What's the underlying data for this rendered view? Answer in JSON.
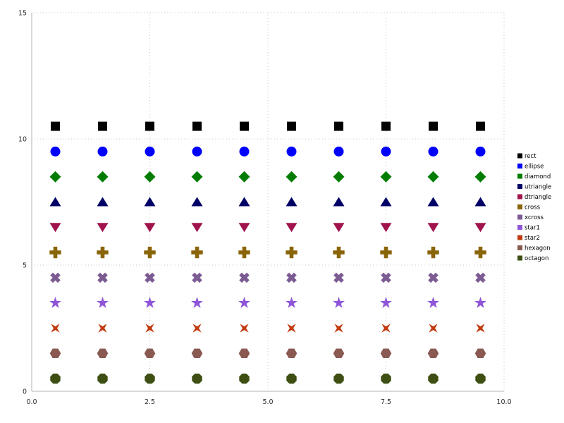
{
  "chart_data": {
    "type": "scatter",
    "title": "",
    "xlabel": "",
    "ylabel": "",
    "xlim": [
      0,
      10
    ],
    "ylim": [
      0,
      15
    ],
    "grid": "dotted",
    "legend_position": "right",
    "x": [
      0.5,
      1.5,
      2.5,
      3.5,
      4.5,
      5.5,
      6.5,
      7.5,
      8.5,
      9.5
    ],
    "xticks": {
      "values": [
        0,
        2.5,
        5,
        7.5,
        10
      ],
      "labels": [
        "0.0",
        "2.5",
        "5.0",
        "7.5",
        "10.0"
      ]
    },
    "yticks": {
      "values": [
        0,
        5,
        10,
        15
      ],
      "labels": [
        "0",
        "5",
        "10",
        "15"
      ]
    },
    "series": [
      {
        "name": "rect",
        "marker": "rect",
        "color": "#000000",
        "y": 10.5
      },
      {
        "name": "ellipse",
        "marker": "ellipse",
        "color": "#0000ff",
        "y": 9.5
      },
      {
        "name": "diamond",
        "marker": "diamond",
        "color": "#007d00",
        "y": 8.5
      },
      {
        "name": "utriangle",
        "marker": "utriangle",
        "color": "#000066",
        "y": 7.5
      },
      {
        "name": "dtriangle",
        "marker": "dtriangle",
        "color": "#a0134c",
        "y": 6.5
      },
      {
        "name": "cross",
        "marker": "cross",
        "color": "#8a6408",
        "y": 5.5
      },
      {
        "name": "xcross",
        "marker": "xcross",
        "color": "#7c5b93",
        "y": 4.5
      },
      {
        "name": "star1",
        "marker": "star1",
        "color": "#8f56d9",
        "y": 3.5
      },
      {
        "name": "star2",
        "marker": "star2",
        "color": "#c23b10",
        "y": 2.5
      },
      {
        "name": "hexagon",
        "marker": "hexagon",
        "color": "#8a5a52",
        "y": 1.5
      },
      {
        "name": "octagon",
        "marker": "octagon",
        "color": "#3d4f12",
        "y": 0.5
      }
    ],
    "legend": {
      "entries": [
        "rect",
        "ellipse",
        "diamond",
        "utriangle",
        "dtriangle",
        "cross",
        "xcross",
        "star1",
        "star2",
        "hexagon",
        "octagon"
      ]
    },
    "style": {
      "grid_color": "#c9c9c9",
      "spine_color": "#b3b3b3",
      "background": "#ffffff"
    }
  }
}
